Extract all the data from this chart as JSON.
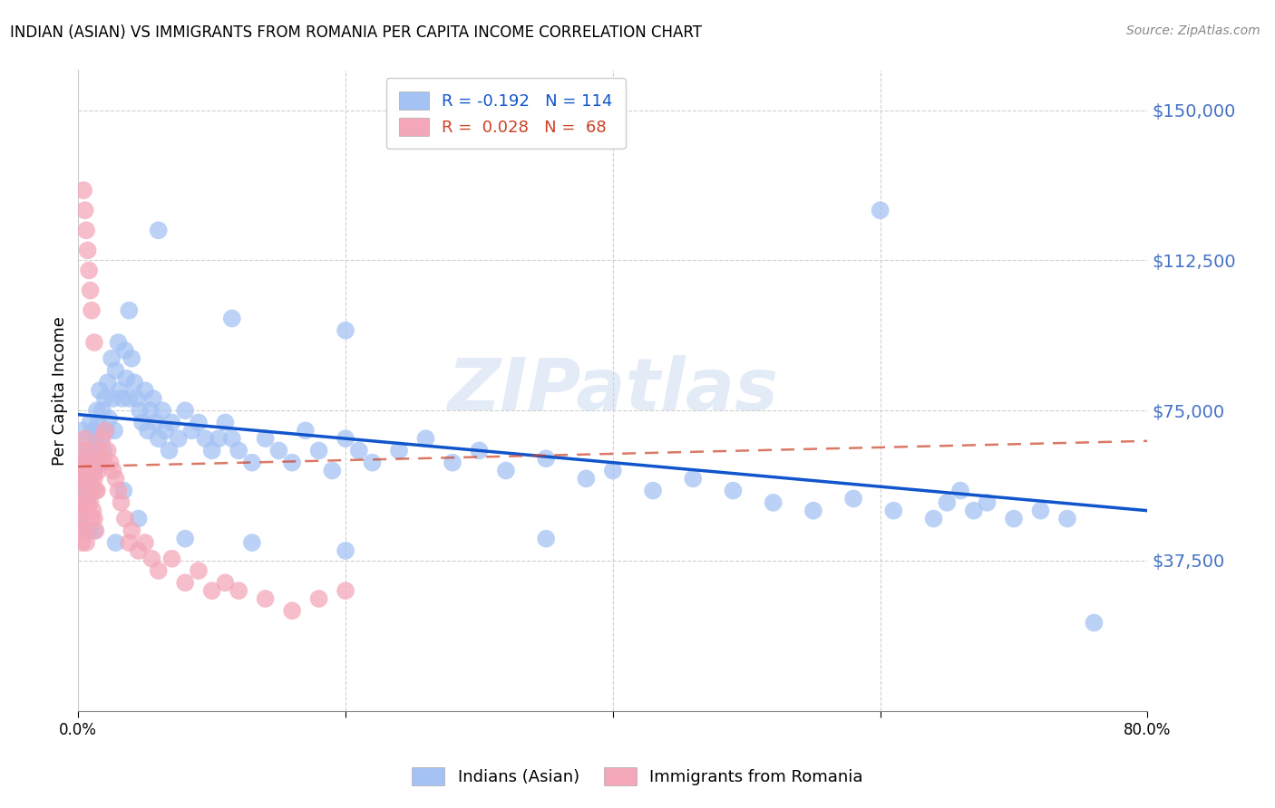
{
  "title": "INDIAN (ASIAN) VS IMMIGRANTS FROM ROMANIA PER CAPITA INCOME CORRELATION CHART",
  "source": "Source: ZipAtlas.com",
  "ylabel": "Per Capita Income",
  "ytick_labels": [
    "$37,500",
    "$75,000",
    "$112,500",
    "$150,000"
  ],
  "ytick_values": [
    37500,
    75000,
    112500,
    150000
  ],
  "ymin": 0,
  "ymax": 160000,
  "xmin": 0.0,
  "xmax": 0.8,
  "color_blue": "#a4c2f4",
  "color_pink": "#f4a7b9",
  "color_blue_line": "#1155cc",
  "color_pink_line": "#cc4125",
  "color_tick_label": "#4472c4",
  "watermark": "ZIPatlas",
  "label1": "Indians (Asian)",
  "label2": "Immigrants from Romania",
  "blue_intercept": 74000,
  "blue_slope": -30000,
  "pink_intercept": 61000,
  "pink_slope": 8000,
  "blue_x": [
    0.001,
    0.002,
    0.002,
    0.003,
    0.003,
    0.004,
    0.004,
    0.005,
    0.005,
    0.006,
    0.006,
    0.007,
    0.007,
    0.008,
    0.008,
    0.009,
    0.01,
    0.01,
    0.011,
    0.012,
    0.013,
    0.014,
    0.015,
    0.015,
    0.016,
    0.017,
    0.018,
    0.019,
    0.02,
    0.021,
    0.022,
    0.023,
    0.025,
    0.026,
    0.027,
    0.028,
    0.03,
    0.031,
    0.033,
    0.035,
    0.036,
    0.038,
    0.04,
    0.042,
    0.044,
    0.046,
    0.048,
    0.05,
    0.052,
    0.054,
    0.056,
    0.058,
    0.06,
    0.063,
    0.065,
    0.068,
    0.07,
    0.075,
    0.08,
    0.085,
    0.09,
    0.095,
    0.1,
    0.105,
    0.11,
    0.115,
    0.12,
    0.13,
    0.14,
    0.15,
    0.16,
    0.17,
    0.18,
    0.19,
    0.2,
    0.21,
    0.22,
    0.24,
    0.26,
    0.28,
    0.3,
    0.32,
    0.35,
    0.38,
    0.4,
    0.43,
    0.46,
    0.49,
    0.52,
    0.55,
    0.58,
    0.61,
    0.64,
    0.65,
    0.66,
    0.67,
    0.68,
    0.7,
    0.72,
    0.74,
    0.06,
    0.038,
    0.115,
    0.2,
    0.6,
    0.034,
    0.045,
    0.028,
    0.012,
    0.08,
    0.13,
    0.2,
    0.35,
    0.76
  ],
  "blue_y": [
    55000,
    62000,
    48000,
    70000,
    45000,
    65000,
    55000,
    60000,
    50000,
    58000,
    63000,
    52000,
    68000,
    58000,
    45000,
    72000,
    65000,
    55000,
    70000,
    60000,
    68000,
    75000,
    72000,
    62000,
    80000,
    68000,
    75000,
    65000,
    78000,
    70000,
    82000,
    73000,
    88000,
    78000,
    70000,
    85000,
    92000,
    80000,
    78000,
    90000,
    83000,
    78000,
    88000,
    82000,
    78000,
    75000,
    72000,
    80000,
    70000,
    75000,
    78000,
    72000,
    68000,
    75000,
    70000,
    65000,
    72000,
    68000,
    75000,
    70000,
    72000,
    68000,
    65000,
    68000,
    72000,
    68000,
    65000,
    62000,
    68000,
    65000,
    62000,
    70000,
    65000,
    60000,
    68000,
    65000,
    62000,
    65000,
    68000,
    62000,
    65000,
    60000,
    63000,
    58000,
    60000,
    55000,
    58000,
    55000,
    52000,
    50000,
    53000,
    50000,
    48000,
    52000,
    55000,
    50000,
    52000,
    48000,
    50000,
    48000,
    120000,
    100000,
    98000,
    95000,
    125000,
    55000,
    48000,
    42000,
    45000,
    43000,
    42000,
    40000,
    43000,
    22000
  ],
  "pink_x": [
    0.001,
    0.001,
    0.002,
    0.002,
    0.002,
    0.003,
    0.003,
    0.003,
    0.004,
    0.004,
    0.005,
    0.005,
    0.005,
    0.006,
    0.006,
    0.006,
    0.007,
    0.007,
    0.008,
    0.008,
    0.009,
    0.009,
    0.01,
    0.01,
    0.011,
    0.011,
    0.012,
    0.012,
    0.013,
    0.013,
    0.014,
    0.015,
    0.016,
    0.017,
    0.018,
    0.019,
    0.02,
    0.022,
    0.024,
    0.026,
    0.028,
    0.03,
    0.032,
    0.035,
    0.038,
    0.04,
    0.045,
    0.05,
    0.055,
    0.06,
    0.07,
    0.08,
    0.09,
    0.1,
    0.11,
    0.12,
    0.14,
    0.16,
    0.18,
    0.2,
    0.004,
    0.005,
    0.006,
    0.007,
    0.008,
    0.009,
    0.01,
    0.012
  ],
  "pink_y": [
    58000,
    48000,
    62000,
    52000,
    45000,
    65000,
    55000,
    42000,
    60000,
    50000,
    68000,
    58000,
    45000,
    62000,
    52000,
    42000,
    60000,
    50000,
    65000,
    55000,
    62000,
    52000,
    58000,
    48000,
    60000,
    50000,
    58000,
    48000,
    55000,
    45000,
    55000,
    60000,
    65000,
    62000,
    68000,
    63000,
    70000,
    65000,
    62000,
    60000,
    58000,
    55000,
    52000,
    48000,
    42000,
    45000,
    40000,
    42000,
    38000,
    35000,
    38000,
    32000,
    35000,
    30000,
    32000,
    30000,
    28000,
    25000,
    28000,
    30000,
    130000,
    125000,
    120000,
    115000,
    110000,
    105000,
    100000,
    92000
  ]
}
